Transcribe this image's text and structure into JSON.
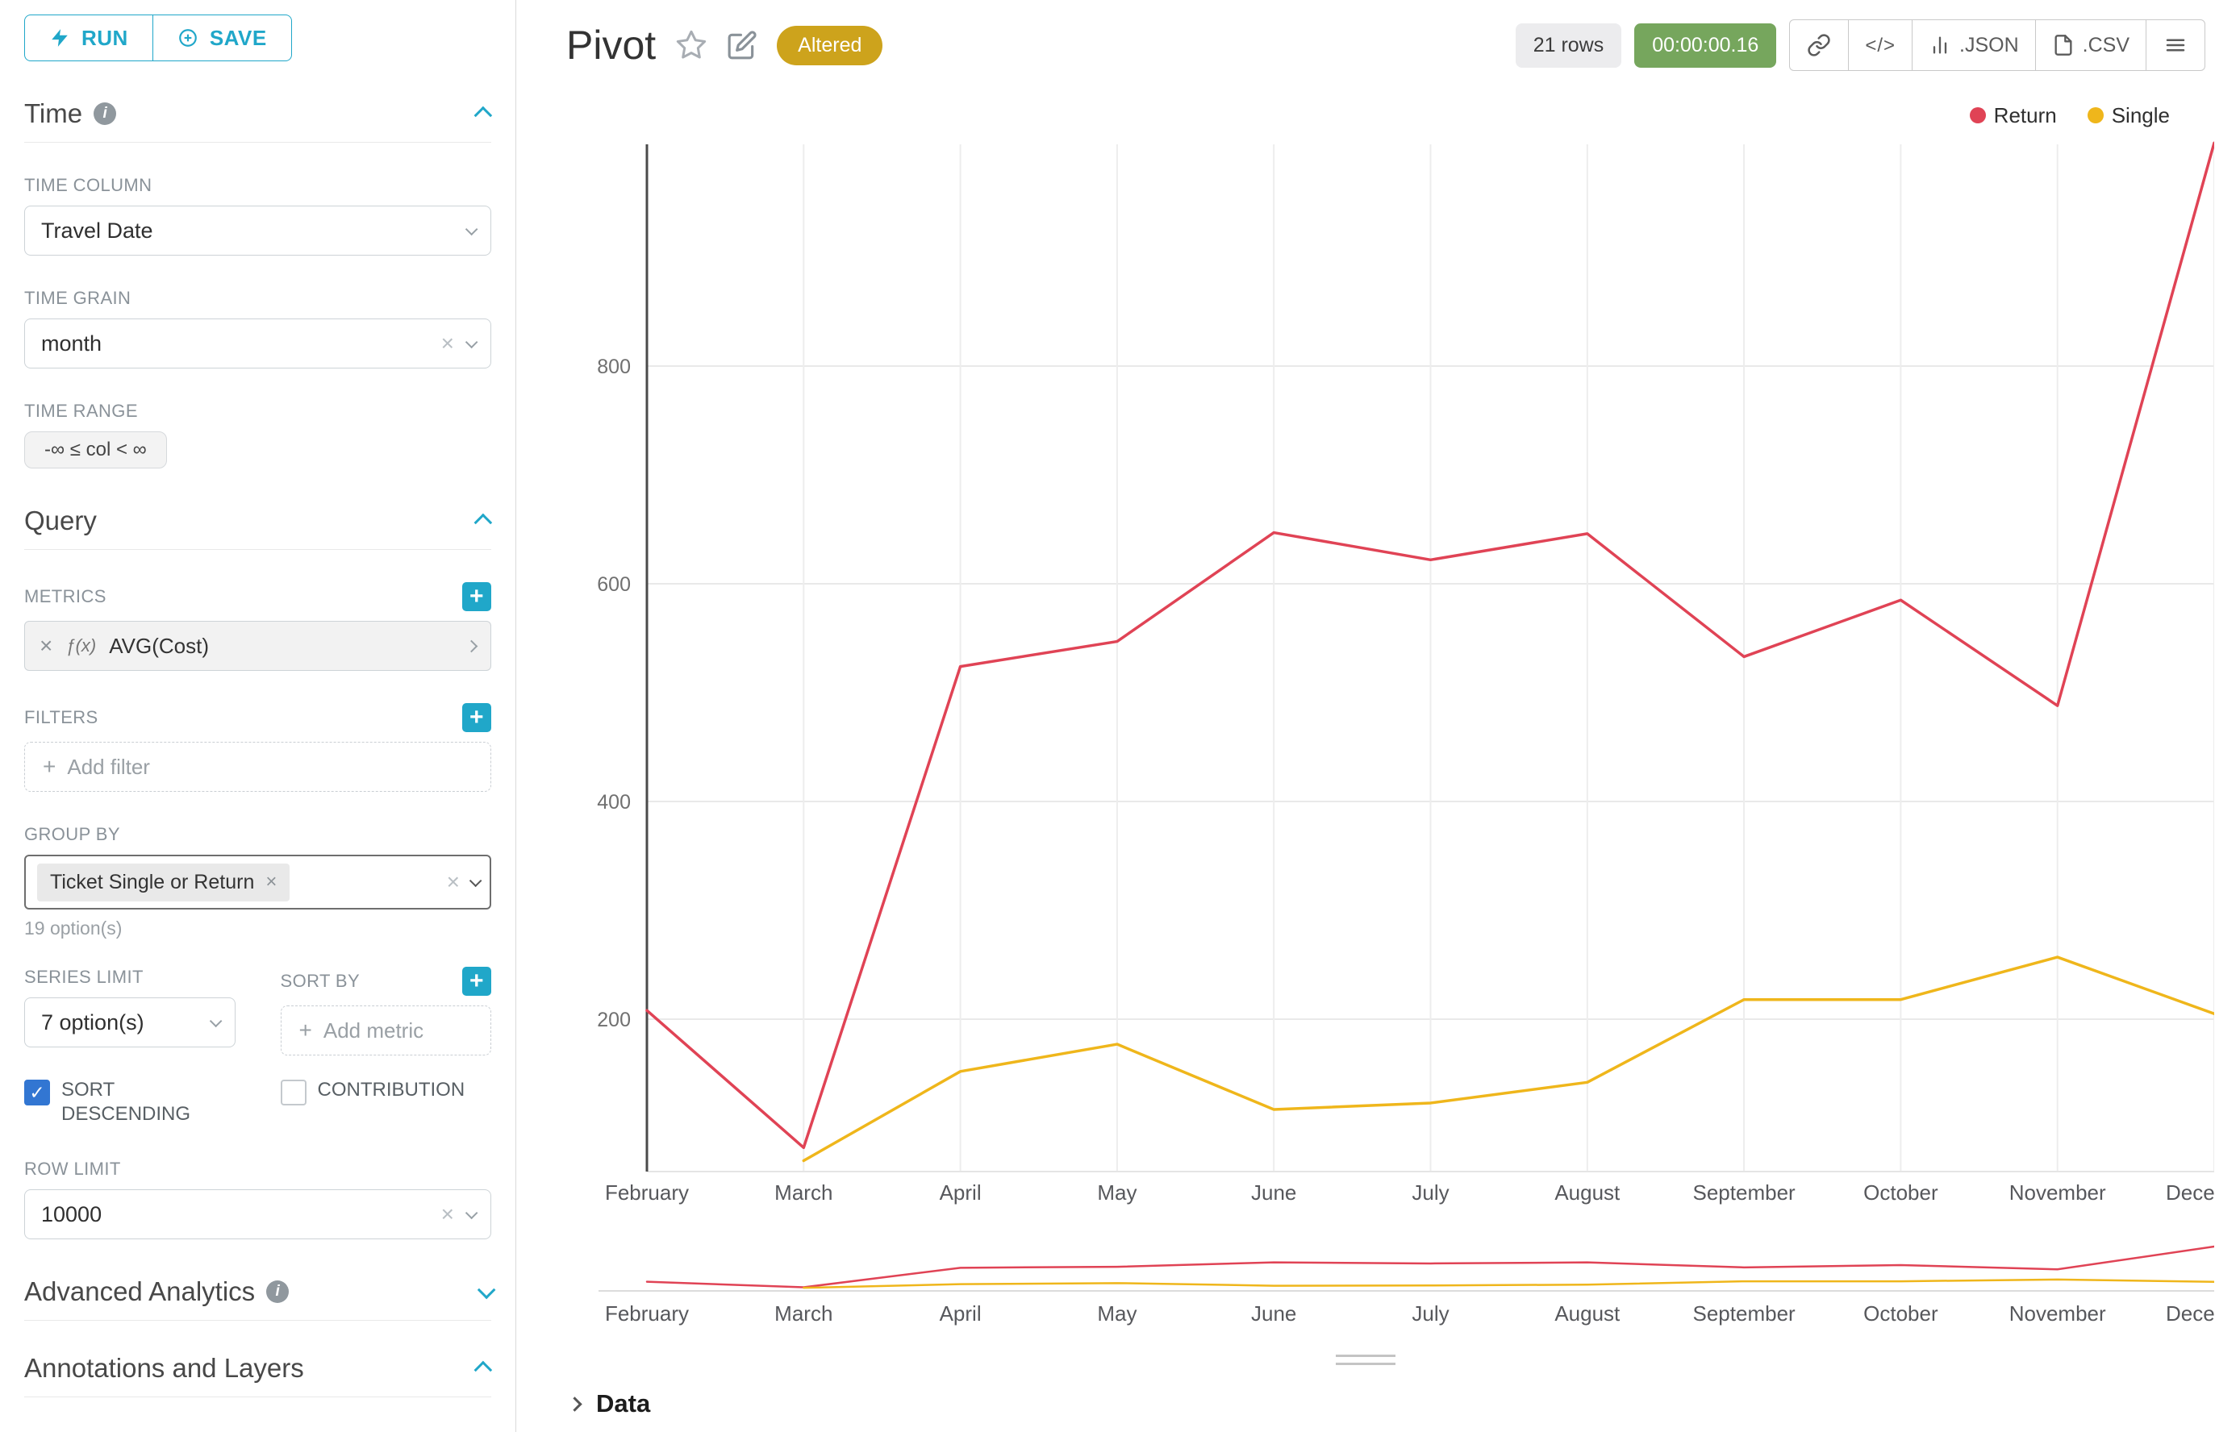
{
  "toolbar": {
    "run": "RUN",
    "save": "SAVE"
  },
  "panel": {
    "time": {
      "title": "Time",
      "column_label": "TIME COLUMN",
      "column_value": "Travel Date",
      "grain_label": "TIME GRAIN",
      "grain_value": "month",
      "range_label": "TIME RANGE",
      "range_value": "-∞ ≤ col < ∞"
    },
    "query": {
      "title": "Query",
      "metrics_label": "METRICS",
      "metric_fx": "ƒ(x)",
      "metric_value": "AVG(Cost)",
      "filters_label": "FILTERS",
      "add_filter": "Add filter",
      "group_by_label": "GROUP BY",
      "group_by_value": "Ticket Single or Return",
      "options_hint": "19 option(s)",
      "series_limit_label": "SERIES LIMIT",
      "series_limit_value": "7 option(s)",
      "sort_by_label": "SORT BY",
      "add_metric": "Add metric",
      "sort_descending": "SORT DESCENDING",
      "contribution": "CONTRIBUTION",
      "row_limit_label": "ROW LIMIT",
      "row_limit_value": "10000"
    },
    "advanced": {
      "title": "Advanced Analytics"
    },
    "annotations": {
      "title": "Annotations and Layers"
    }
  },
  "header": {
    "title": "Pivot",
    "altered": "Altered",
    "rows": "21 rows",
    "timer": "00:00:00.16",
    "json": ".JSON",
    "csv": ".CSV"
  },
  "footer": {
    "data": "Data"
  },
  "colors": {
    "accent": "#20a7c9",
    "return_line": "#e04355",
    "single_line": "#efb61b",
    "altered_badge": "#cda31c",
    "timer_green": "#76a65d"
  },
  "chart_data": {
    "type": "line",
    "title": "Pivot",
    "categories": [
      "February",
      "March",
      "April",
      "May",
      "June",
      "July",
      "August",
      "September",
      "October",
      "November",
      "December"
    ],
    "series": [
      {
        "name": "Return",
        "color": "#e04355",
        "values": [
          208,
          82,
          524,
          547,
          647,
          622,
          646,
          533,
          585,
          488,
          1005
        ]
      },
      {
        "name": "Single",
        "color": "#efb61b",
        "values": [
          null,
          70,
          152,
          177,
          117,
          123,
          142,
          218,
          218,
          257,
          205
        ]
      }
    ],
    "xlabel": "",
    "ylabel": "",
    "yticks": [
      200,
      400,
      600,
      800
    ],
    "ylim": [
      0,
      1010
    ],
    "grid": true,
    "legend_position": "top-right",
    "has_mini_preview": true
  }
}
